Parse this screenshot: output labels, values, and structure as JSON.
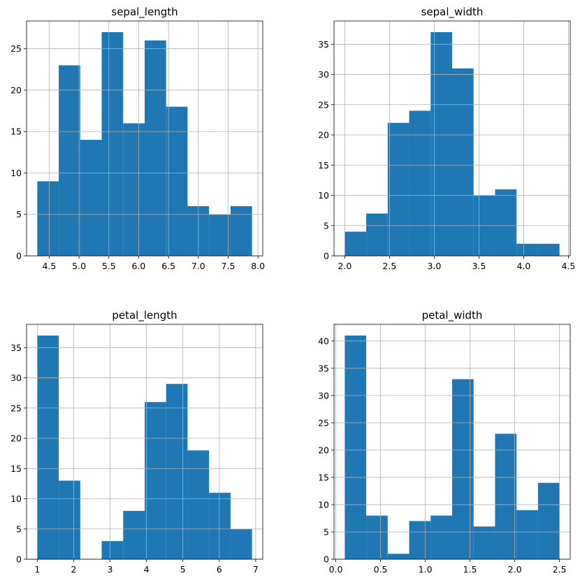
{
  "colors": {
    "bar": "#1f77b4",
    "grid": "#b0b0b0",
    "axis": "#000000"
  },
  "chart_data": [
    {
      "type": "bar",
      "title": "sepal_length",
      "bin_edges": [
        4.3,
        4.66,
        5.02,
        5.38,
        5.74,
        6.1,
        6.46,
        6.82,
        7.18,
        7.54,
        7.9
      ],
      "values": [
        9,
        23,
        14,
        27,
        16,
        26,
        18,
        6,
        5,
        6
      ],
      "xlim": [
        4.12,
        8.08
      ],
      "ylim": [
        0,
        28.35
      ],
      "xticks": [
        4.5,
        5.0,
        5.5,
        6.0,
        6.5,
        7.0,
        7.5,
        8.0
      ],
      "xtick_labels": [
        "4.5",
        "5.0",
        "5.5",
        "6.0",
        "6.5",
        "7.0",
        "7.5",
        "8.0"
      ],
      "yticks": [
        0,
        5,
        10,
        15,
        20,
        25
      ],
      "ytick_labels": [
        "0",
        "5",
        "10",
        "15",
        "20",
        "25"
      ],
      "grid": true
    },
    {
      "type": "bar",
      "title": "sepal_width",
      "bin_edges": [
        2.0,
        2.24,
        2.48,
        2.72,
        2.96,
        3.2,
        3.44,
        3.68,
        3.92,
        4.16,
        4.4
      ],
      "values": [
        4,
        7,
        22,
        24,
        37,
        31,
        10,
        11,
        2,
        2
      ],
      "xlim": [
        1.88,
        4.52
      ],
      "ylim": [
        0,
        38.85
      ],
      "xticks": [
        2.0,
        2.5,
        3.0,
        3.5,
        4.0,
        4.5
      ],
      "xtick_labels": [
        "2.0",
        "2.5",
        "3.0",
        "3.5",
        "4.0",
        "4.5"
      ],
      "yticks": [
        0,
        5,
        10,
        15,
        20,
        25,
        30,
        35
      ],
      "ytick_labels": [
        "0",
        "5",
        "10",
        "15",
        "20",
        "25",
        "30",
        "35"
      ],
      "grid": true
    },
    {
      "type": "bar",
      "title": "petal_length",
      "bin_edges": [
        1.0,
        1.59,
        2.18,
        2.77,
        3.36,
        3.95,
        4.54,
        5.13,
        5.72,
        6.31,
        6.9
      ],
      "values": [
        37,
        13,
        0,
        3,
        8,
        26,
        29,
        18,
        11,
        5
      ],
      "xlim": [
        0.705,
        7.195
      ],
      "ylim": [
        0,
        38.85
      ],
      "xticks": [
        1,
        2,
        3,
        4,
        5,
        6,
        7
      ],
      "xtick_labels": [
        "1",
        "2",
        "3",
        "4",
        "5",
        "6",
        "7"
      ],
      "yticks": [
        0,
        5,
        10,
        15,
        20,
        25,
        30,
        35
      ],
      "ytick_labels": [
        "0",
        "5",
        "10",
        "15",
        "20",
        "25",
        "30",
        "35"
      ],
      "grid": true
    },
    {
      "type": "bar",
      "title": "petal_width",
      "bin_edges": [
        0.1,
        0.34,
        0.58,
        0.82,
        1.06,
        1.3,
        1.54,
        1.78,
        2.02,
        2.26,
        2.5
      ],
      "values": [
        41,
        8,
        1,
        7,
        8,
        33,
        6,
        23,
        9,
        14
      ],
      "xlim": [
        -0.02,
        2.62
      ],
      "ylim": [
        0,
        43.05
      ],
      "xticks": [
        0.0,
        0.5,
        1.0,
        1.5,
        2.0,
        2.5
      ],
      "xtick_labels": [
        "0.0",
        "0.5",
        "1.0",
        "1.5",
        "2.0",
        "2.5"
      ],
      "yticks": [
        0,
        5,
        10,
        15,
        20,
        25,
        30,
        35,
        40
      ],
      "ytick_labels": [
        "0",
        "5",
        "10",
        "15",
        "20",
        "25",
        "30",
        "35",
        "40"
      ],
      "grid": true
    }
  ]
}
